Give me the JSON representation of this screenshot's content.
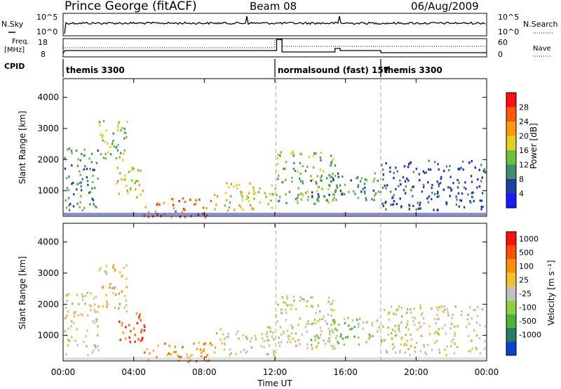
{
  "header": {
    "station": "Prince George (fitACF)",
    "beam": "Beam 08",
    "date": "06/Aug/2009"
  },
  "top_panels": {
    "nsky_label": "N.Sky",
    "nsky_ticks": [
      "10^5",
      "10^0"
    ],
    "nsearch_label": "N.Search",
    "nsearch_ticks": [
      "10^5",
      "10^0"
    ],
    "freq_label": "Freq.",
    "freq_unit": "[MHz]",
    "freq_ticks": [
      "18",
      "8"
    ],
    "nave_label": "Nave",
    "nave_ticks": [
      "60",
      "0"
    ],
    "cpid_label": "CPID",
    "cpid_segments": [
      {
        "label": "themis 3300",
        "start_hour": 0,
        "end_hour": 12
      },
      {
        "label": "normalsound (fast) 157",
        "start_hour": 12,
        "end_hour": 18
      },
      {
        "label": "themis 3300",
        "start_hour": 18,
        "end_hour": 24
      }
    ]
  },
  "chart_data": [
    {
      "type": "heatmap",
      "name": "power-panel",
      "ylabel": "Slant Range [km]",
      "xlabel": "",
      "xlim": [
        0,
        24
      ],
      "ylim": [
        180,
        4600
      ],
      "yticks": [
        1000,
        2000,
        3000,
        4000
      ],
      "colorbar_label": "Power [dB]",
      "colorbar_ticks": [
        "4",
        "8",
        "12",
        "16",
        "20",
        "24",
        "28"
      ],
      "colorbar_colors": [
        "#1a1aff",
        "#20409f",
        "#3d8f6a",
        "#6cbf3a",
        "#e0d020",
        "#ff9a10",
        "#ff5a00",
        "#ff1010"
      ],
      "echo_regions": [
        {
          "x0": 0.0,
          "x1": 2.0,
          "y0": 400,
          "y1": 2400,
          "level": 2
        },
        {
          "x0": 2.0,
          "x1": 3.6,
          "y0": 1800,
          "y1": 3300,
          "level": 3
        },
        {
          "x0": 3.0,
          "x1": 4.6,
          "y0": 800,
          "y1": 1800,
          "level": 4
        },
        {
          "x0": 4.5,
          "x1": 8.5,
          "y0": 180,
          "y1": 800,
          "level": 6
        },
        {
          "x0": 8.5,
          "x1": 12.0,
          "y0": 400,
          "y1": 1300,
          "level": 4
        },
        {
          "x0": 12.0,
          "x1": 15.5,
          "y0": 600,
          "y1": 2300,
          "level": 3
        },
        {
          "x0": 14.0,
          "x1": 18.0,
          "y0": 700,
          "y1": 1600,
          "level": 2
        },
        {
          "x0": 18.0,
          "x1": 24.0,
          "y0": 400,
          "y1": 2000,
          "level": 1
        }
      ]
    },
    {
      "type": "heatmap",
      "name": "velocity-panel",
      "ylabel": "Slant Range [km]",
      "xlabel": "Time UT",
      "xlim": [
        0,
        24
      ],
      "ylim": [
        180,
        4600
      ],
      "yticks": [
        1000,
        2000,
        3000,
        4000
      ],
      "xticks": [
        "00:00",
        "04:00",
        "08:00",
        "12:00",
        "16:00",
        "20:00",
        "00:00"
      ],
      "colorbar_label": "Velocity [m s⁻¹]",
      "colorbar_ticks": [
        "1000",
        "500",
        "100",
        "25",
        "-25",
        "-100",
        "-500",
        "-1000"
      ],
      "colorbar_colors": [
        "#1040d0",
        "#208060",
        "#50b030",
        "#90d040",
        "#c0c0c0",
        "#f0c030",
        "#ff9000",
        "#ff5000",
        "#ff1010"
      ],
      "echo_regions": [
        {
          "x0": 0.0,
          "x1": 2.0,
          "y0": 400,
          "y1": 2400,
          "level": 4
        },
        {
          "x0": 2.0,
          "x1": 3.6,
          "y0": 1800,
          "y1": 3300,
          "level": 5
        },
        {
          "x0": 3.0,
          "x1": 4.6,
          "y0": 800,
          "y1": 1800,
          "level": 7
        },
        {
          "x0": 4.5,
          "x1": 8.5,
          "y0": 180,
          "y1": 800,
          "level": 6
        },
        {
          "x0": 8.5,
          "x1": 12.0,
          "y0": 400,
          "y1": 1300,
          "level": 4
        },
        {
          "x0": 12.0,
          "x1": 15.5,
          "y0": 600,
          "y1": 2300,
          "level": 4
        },
        {
          "x0": 14.0,
          "x1": 18.0,
          "y0": 700,
          "y1": 1600,
          "level": 3
        },
        {
          "x0": 18.0,
          "x1": 24.0,
          "y0": 400,
          "y1": 2000,
          "level": 4
        }
      ]
    }
  ]
}
